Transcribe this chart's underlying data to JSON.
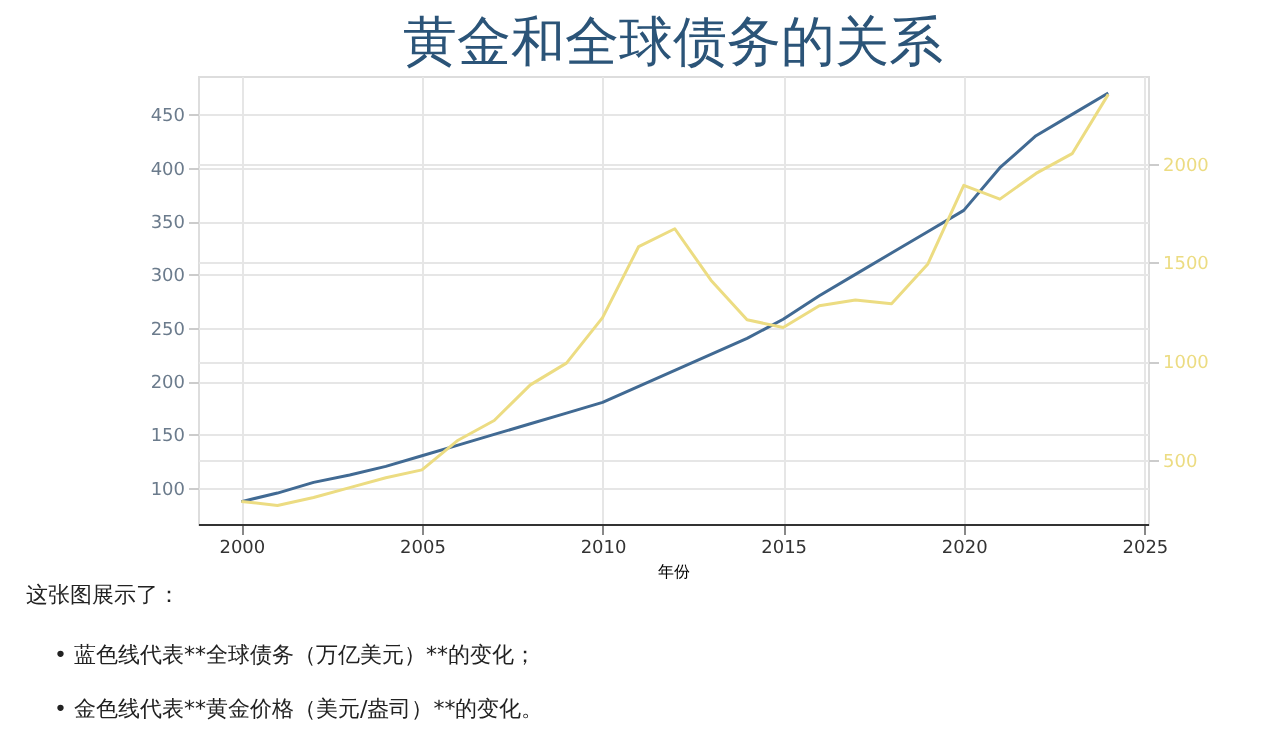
{
  "chart_data": {
    "type": "line",
    "title": "黄金和全球债务的关系",
    "xlabel": "年份",
    "x": [
      2000,
      2001,
      2002,
      2003,
      2004,
      2005,
      2006,
      2007,
      2008,
      2009,
      2010,
      2011,
      2012,
      2013,
      2014,
      2015,
      2016,
      2017,
      2018,
      2019,
      2020,
      2021,
      2022,
      2023,
      2024
    ],
    "series": [
      {
        "color": "#416a93",
        "values": [
          87,
          95,
          105,
          112,
          120,
          130,
          140,
          150,
          160,
          170,
          180,
          195,
          210,
          225,
          240,
          258,
          280,
          300,
          320,
          340,
          360,
          400,
          430,
          450,
          470
        ]
      },
      {
        "color": "#ecdc82",
        "axis": "y2",
        "values": [
          290,
          270,
          310,
          360,
          410,
          450,
          600,
          700,
          880,
          990,
          1220,
          1580,
          1670,
          1410,
          1210,
          1170,
          1280,
          1310,
          1290,
          1490,
          1890,
          1820,
          1950,
          2050,
          2350
        ]
      }
    ],
    "xlim": [
      1998.8,
      2025.1
    ],
    "xticks": [
      2000,
      2005,
      2010,
      2015,
      2020,
      2025
    ],
    "ylim": [
      66,
      486
    ],
    "yticks": [
      100,
      150,
      200,
      250,
      300,
      350,
      400,
      450
    ],
    "y2lim": [
      176,
      2443
    ],
    "y2ticks": [
      500,
      1000,
      1500,
      2000
    ],
    "grid": true,
    "line_style": "solid",
    "marker": "none",
    "annotations": [
      "这张图展示了：",
      "• 蓝色线代表**全球债务（万亿美元）**的变化；",
      "• 金色线代表**黄金价格（美元/盎司）**的变化。"
    ]
  }
}
